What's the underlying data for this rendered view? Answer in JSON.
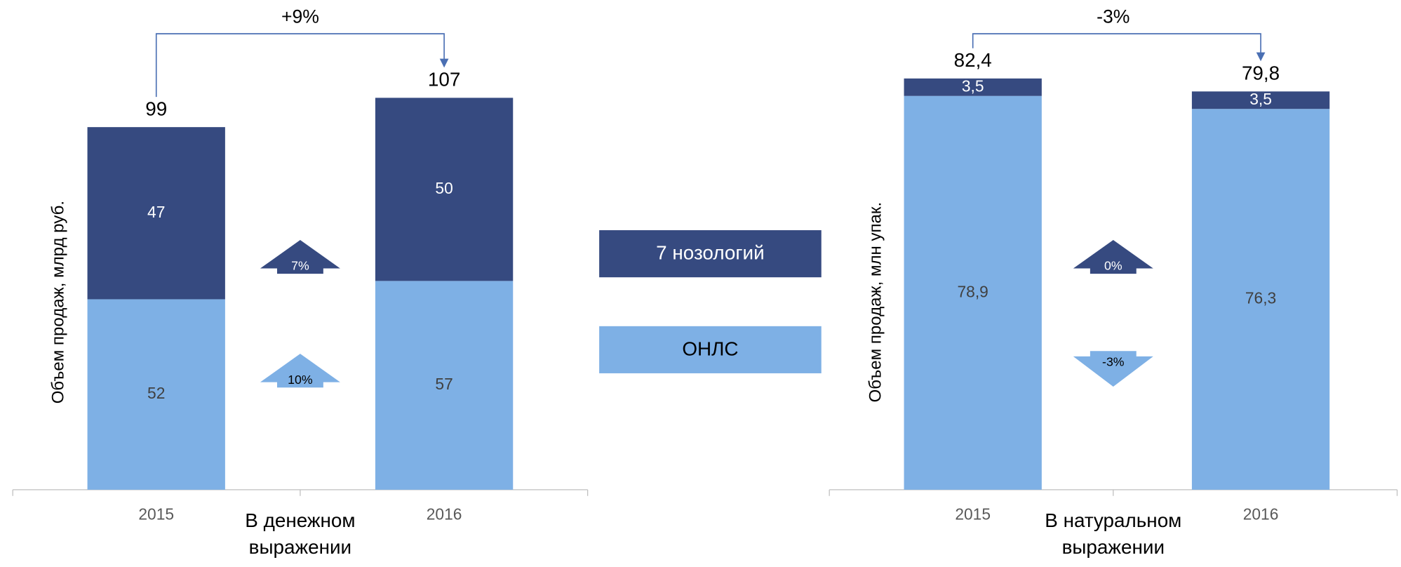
{
  "chart_data": [
    {
      "type": "stacked_bar",
      "y_label": "Объем продаж, млрд руб.",
      "x_label": [
        "В денежном",
        "выражении"
      ],
      "categories": [
        "2015",
        "2016"
      ],
      "series": [
        {
          "name": "ОНЛС",
          "color": "#7eb0e5",
          "values": [
            52,
            57
          ]
        },
        {
          "name": "7 нозологий",
          "color": "#364a80",
          "values": [
            47,
            50
          ]
        }
      ],
      "totals": [
        99,
        107
      ],
      "change": "+9%",
      "segment_changes": [
        {
          "series": 1,
          "label": "7%",
          "direction": "up"
        },
        {
          "series": 0,
          "label": "10%",
          "direction": "up"
        }
      ],
      "ylim": [
        0,
        124
      ]
    },
    {
      "type": "stacked_bar",
      "y_label": "Объем продаж, млн упак.",
      "x_label": [
        "В натуральном",
        "выражении"
      ],
      "categories": [
        "2015",
        "2016"
      ],
      "series": [
        {
          "name": "ОНЛС",
          "color": "#7eb0e5",
          "values": [
            78.9,
            76.3
          ],
          "value_labels": [
            "78,9",
            "76,3"
          ]
        },
        {
          "name": "7 нозологий",
          "color": "#364a80",
          "values": [
            3.5,
            3.5
          ],
          "value_labels": [
            "3,5",
            "3,5"
          ]
        }
      ],
      "totals": [
        82.4,
        79.8
      ],
      "total_labels": [
        "82,4",
        "79,8"
      ],
      "change": "-3%",
      "segment_changes": [
        {
          "series": 1,
          "label": "0%",
          "direction": "up"
        },
        {
          "series": 0,
          "label": "-3%",
          "direction": "down"
        }
      ],
      "ylim": [
        0,
        91
      ]
    }
  ]
}
